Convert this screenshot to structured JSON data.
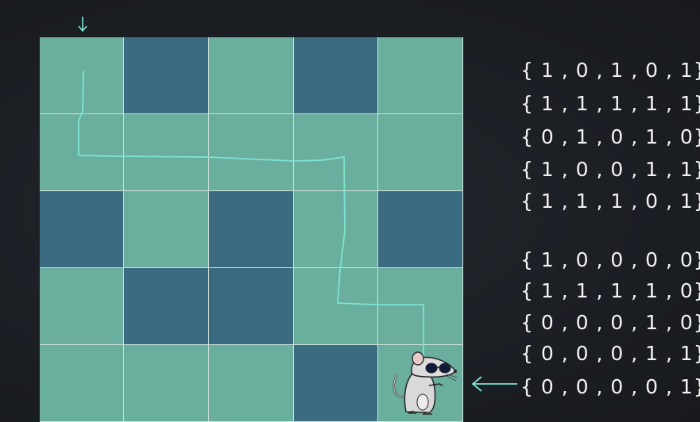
{
  "maze": {
    "grid": [
      [
        1,
        0,
        1,
        0,
        1
      ],
      [
        1,
        1,
        1,
        1,
        1
      ],
      [
        0,
        1,
        0,
        1,
        0
      ],
      [
        1,
        0,
        0,
        1,
        1
      ],
      [
        1,
        1,
        1,
        0,
        1
      ]
    ],
    "colors": {
      "open": "#6aae9e",
      "wall": "#3b6b80",
      "path": "#7fe3d3",
      "background": "#1c1f24"
    },
    "entry_arrow": "arrow-down-icon",
    "exit_arrow": "arrow-left-icon",
    "rat": "rat-with-sunglasses-icon"
  },
  "matrix_text": {
    "maze_rows": [
      "{ 1 , 0 , 1 , 0 , 1}",
      "{ 1 , 1 , 1 , 1 , 1}",
      "{ 0 , 1 , 0 , 1 , 0}",
      "{ 1 , 0 , 0 , 1 , 1}",
      "{ 1 , 1 , 1 , 0 , 1}"
    ],
    "solution_rows": [
      "{ 1 , 0 , 0 , 0 , 0}",
      "{ 1 , 1 , 1 , 1 , 0}",
      "{ 0 , 0 , 0 , 1 , 0}",
      "{ 0 , 0 , 0 , 1 , 1}",
      "{ 0 , 0 , 0 , 0 , 1}"
    ]
  }
}
